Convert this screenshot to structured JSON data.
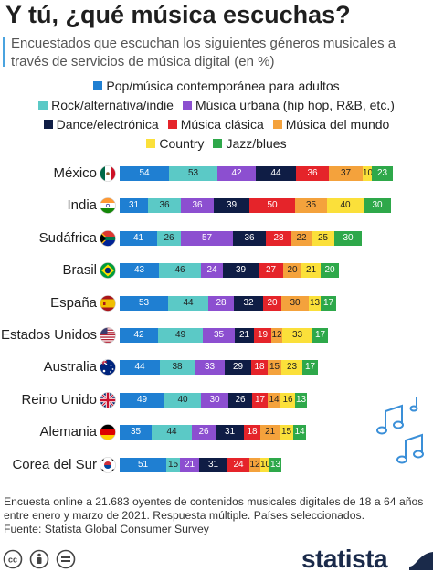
{
  "title": "Y tú, ¿qué música escuchas?",
  "subtitle": "Encuestados que escuchan los siguientes géneros musicales a través de servicios de música digital (en %)",
  "legend": [
    [
      {
        "label": "Pop/música contemporánea para adultos",
        "color": "#1f7fd2"
      }
    ],
    [
      {
        "label": "Rock/alternativa/indie",
        "color": "#5bc9c6"
      },
      {
        "label": "Música urbana (hip hop, R&B, etc.)",
        "color": "#8c4fd0"
      }
    ],
    [
      {
        "label": "Dance/electrónica",
        "color": "#0f1d45"
      },
      {
        "label": "Música clásica",
        "color": "#e5242a"
      },
      {
        "label": "Música del mundo",
        "color": "#f4a23c"
      }
    ],
    [
      {
        "label": "Country",
        "color": "#fbe03a"
      },
      {
        "label": "Jazz/blues",
        "color": "#2ea84a"
      }
    ]
  ],
  "chart_data": {
    "type": "bar",
    "stacked": true,
    "orientation": "horizontal",
    "unit": "%",
    "categories": [
      "México",
      "India",
      "Sudáfrica",
      "Brasil",
      "España",
      "Estados Unidos",
      "Australia",
      "Reino Unido",
      "Alemania",
      "Corea del Sur"
    ],
    "series": [
      {
        "name": "Pop/música contemporánea para adultos",
        "color": "#1f7fd2",
        "values": [
          54,
          31,
          41,
          43,
          53,
          42,
          44,
          49,
          35,
          51
        ]
      },
      {
        "name": "Rock/alternativa/indie",
        "color": "#5bc9c6",
        "values": [
          53,
          36,
          26,
          46,
          44,
          49,
          38,
          40,
          44,
          15
        ]
      },
      {
        "name": "Música urbana (hip hop, R&B, etc.)",
        "color": "#8c4fd0",
        "values": [
          42,
          36,
          57,
          24,
          28,
          35,
          33,
          30,
          26,
          21
        ]
      },
      {
        "name": "Dance/electrónica",
        "color": "#0f1d45",
        "values": [
          44,
          39,
          36,
          39,
          32,
          21,
          29,
          26,
          31,
          31
        ]
      },
      {
        "name": "Música clásica",
        "color": "#e5242a",
        "values": [
          36,
          50,
          28,
          27,
          20,
          19,
          18,
          17,
          18,
          24
        ]
      },
      {
        "name": "Música del mundo",
        "color": "#f4a23c",
        "values": [
          37,
          35,
          22,
          20,
          30,
          12,
          15,
          14,
          21,
          12
        ]
      },
      {
        "name": "Country",
        "color": "#fbe03a",
        "values": [
          10,
          40,
          25,
          21,
          13,
          33,
          23,
          16,
          15,
          10
        ]
      },
      {
        "name": "Jazz/blues",
        "color": "#2ea84a",
        "values": [
          23,
          30,
          30,
          20,
          17,
          17,
          17,
          13,
          14,
          13
        ]
      }
    ]
  },
  "flags": [
    "mexico",
    "india",
    "south-africa",
    "brazil",
    "spain",
    "usa",
    "australia",
    "uk",
    "germany",
    "south-korea"
  ],
  "note": "Encuesta online a 21.683 oyentes de contenidos musicales digitales de 18 a 64 años entre enero y marzo de 2021. Respuesta múltiple. Países seleccionados.",
  "source": "Fuente: Statista Global Consumer Survey",
  "logo": "statista",
  "license_icons": [
    "cc-icon",
    "attribution-icon",
    "no-derivatives-icon"
  ]
}
